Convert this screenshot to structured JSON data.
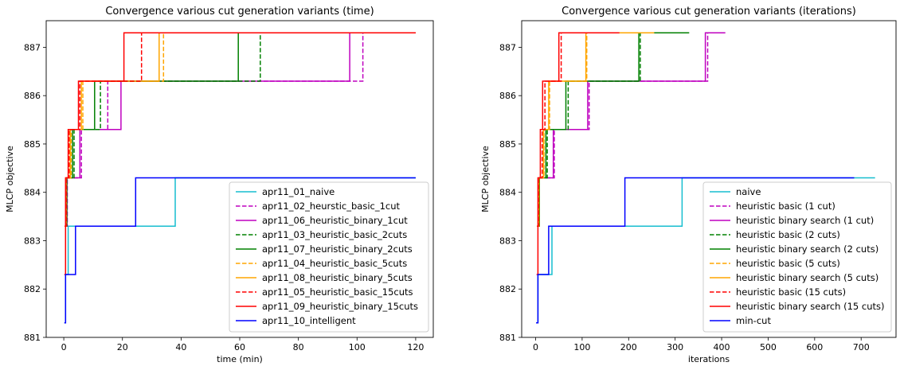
{
  "chart_data": [
    {
      "type": "line",
      "title": "Convergence various cut generation variants (time)",
      "xlabel": "time (min)",
      "ylabel": "MLCP objective",
      "xlim": [
        -6,
        126
      ],
      "ylim": [
        881,
        887.55
      ],
      "xticks": [
        0,
        20,
        40,
        60,
        80,
        100,
        120
      ],
      "yticks": [
        881,
        882,
        883,
        884,
        885,
        886,
        887
      ],
      "legend_position": "lower-right",
      "step": "post",
      "series": [
        {
          "name": "apr11_01_naive",
          "color": "#17becf",
          "dash": false,
          "x": [
            0.2,
            0.6,
            1.5,
            3.5,
            38,
            120
          ],
          "y": [
            881.3,
            882.3,
            883.3,
            883.3,
            884.3,
            884.3
          ]
        },
        {
          "name": "apr11_02_heurstic_basic_1cut",
          "color": "#bf00bf",
          "dash": true,
          "x": [
            0.3,
            1.2,
            6,
            15,
            102,
            120
          ],
          "y": [
            883.3,
            884.3,
            885.3,
            886.3,
            887.3,
            887.3
          ]
        },
        {
          "name": "apr11_06_heuristic_binary_1cut",
          "color": "#bf00bf",
          "dash": false,
          "x": [
            0.3,
            1.1,
            5.5,
            19.5,
            97.5,
            120
          ],
          "y": [
            883.3,
            884.3,
            885.3,
            886.3,
            887.3,
            887.3
          ]
        },
        {
          "name": "apr11_03_heuristic_basic_2cuts",
          "color": "#008000",
          "dash": true,
          "x": [
            0.3,
            1,
            3.5,
            12.5,
            67,
            120
          ],
          "y": [
            883.3,
            884.3,
            885.3,
            886.3,
            887.3,
            887.3
          ]
        },
        {
          "name": "apr11_07_heuristic_binary_2cuts",
          "color": "#008000",
          "dash": false,
          "x": [
            0.3,
            1,
            3,
            10.5,
            59.5,
            120
          ],
          "y": [
            883.3,
            884.3,
            885.3,
            886.3,
            887.3,
            887.3
          ]
        },
        {
          "name": "apr11_04_heuristic_basic_5cuts",
          "color": "#ffa500",
          "dash": true,
          "x": [
            0.3,
            0.8,
            2.5,
            6.5,
            34,
            120
          ],
          "y": [
            883.3,
            884.3,
            885.3,
            886.3,
            887.3,
            887.3
          ]
        },
        {
          "name": "apr11_08_heuristic_binary_5cuts",
          "color": "#ffa500",
          "dash": false,
          "x": [
            0.3,
            0.8,
            2.2,
            6,
            32.5,
            120
          ],
          "y": [
            883.3,
            884.3,
            885.3,
            886.3,
            887.3,
            887.3
          ]
        },
        {
          "name": "apr11_05_heuristic_basic_15cuts",
          "color": "#ff0000",
          "dash": true,
          "x": [
            0.3,
            0.8,
            1.8,
            5.5,
            26.5,
            120
          ],
          "y": [
            883.3,
            884.3,
            885.3,
            886.3,
            887.3,
            887.3
          ]
        },
        {
          "name": "apr11_09_heuristic_binary_15cuts",
          "color": "#ff0000",
          "dash": false,
          "x": [
            0.2,
            0.6,
            1.5,
            5,
            20.5,
            120
          ],
          "y": [
            882.3,
            884.3,
            885.3,
            886.3,
            887.3,
            887.3
          ]
        },
        {
          "name": "apr11_10_intelligent",
          "color": "#0000ff",
          "dash": false,
          "x": [
            0.2,
            0.6,
            4,
            24.5,
            120
          ],
          "y": [
            881.3,
            882.3,
            883.3,
            884.3,
            884.3
          ]
        }
      ]
    },
    {
      "type": "line",
      "title": "Convergence various cut generation variants (iterations)",
      "xlabel": "iterations",
      "ylabel": "MLCP objective",
      "xlim": [
        -30,
        775
      ],
      "ylim": [
        881,
        887.55
      ],
      "xticks": [
        0,
        100,
        200,
        300,
        400,
        500,
        600,
        700
      ],
      "yticks": [
        881,
        882,
        883,
        884,
        885,
        886,
        887
      ],
      "legend_position": "lower-right",
      "step": "post",
      "series": [
        {
          "name": "naive",
          "color": "#17becf",
          "dash": false,
          "x": [
            1,
            5,
            35,
            315,
            730
          ],
          "y": [
            881.3,
            882.3,
            883.3,
            884.3,
            884.3
          ]
        },
        {
          "name": "heuristic basic (1 cut)",
          "color": "#bf00bf",
          "dash": true,
          "x": [
            3,
            8,
            40,
            115,
            370,
            408
          ],
          "y": [
            883.3,
            884.3,
            885.3,
            886.3,
            887.3,
            887.3
          ]
        },
        {
          "name": "heuristic binary search (1 cut)",
          "color": "#bf00bf",
          "dash": false,
          "x": [
            3,
            8,
            38,
            112,
            365,
            408
          ],
          "y": [
            883.3,
            884.3,
            885.3,
            886.3,
            887.3,
            887.3
          ]
        },
        {
          "name": "heuristic basic (2 cuts)",
          "color": "#008000",
          "dash": true,
          "x": [
            3,
            8,
            25,
            70,
            225,
            330
          ],
          "y": [
            883.3,
            884.3,
            885.3,
            886.3,
            887.3,
            887.3
          ]
        },
        {
          "name": "heuristic binary search (2 cuts)",
          "color": "#008000",
          "dash": false,
          "x": [
            3,
            8,
            22,
            65,
            222,
            330
          ],
          "y": [
            883.3,
            884.3,
            885.3,
            886.3,
            887.3,
            887.3
          ]
        },
        {
          "name": "heuristic basic (5 cuts)",
          "color": "#ffa500",
          "dash": true,
          "x": [
            3,
            7,
            18,
            30,
            110,
            255
          ],
          "y": [
            883.3,
            884.3,
            885.3,
            886.3,
            887.3,
            887.3
          ]
        },
        {
          "name": "heuristic binary search (5 cuts)",
          "color": "#ffa500",
          "dash": false,
          "x": [
            3,
            7,
            17,
            28,
            108,
            255
          ],
          "y": [
            883.3,
            884.3,
            885.3,
            886.3,
            887.3,
            887.3
          ]
        },
        {
          "name": "heuristic basic (15 cuts)",
          "color": "#ff0000",
          "dash": true,
          "x": [
            3,
            6,
            14,
            20,
            55,
            180
          ],
          "y": [
            883.3,
            884.3,
            885.3,
            886.3,
            887.3,
            887.3
          ]
        },
        {
          "name": "heuristic binary search (15 cuts)",
          "color": "#ff0000",
          "dash": false,
          "x": [
            2,
            5,
            10,
            15,
            50,
            180
          ],
          "y": [
            882.3,
            884.3,
            885.3,
            886.3,
            887.3,
            887.3
          ]
        },
        {
          "name": "min-cut",
          "color": "#0000ff",
          "dash": false,
          "x": [
            1,
            5,
            28,
            192,
            685
          ],
          "y": [
            881.3,
            882.3,
            883.3,
            884.3,
            884.3
          ]
        }
      ]
    }
  ]
}
